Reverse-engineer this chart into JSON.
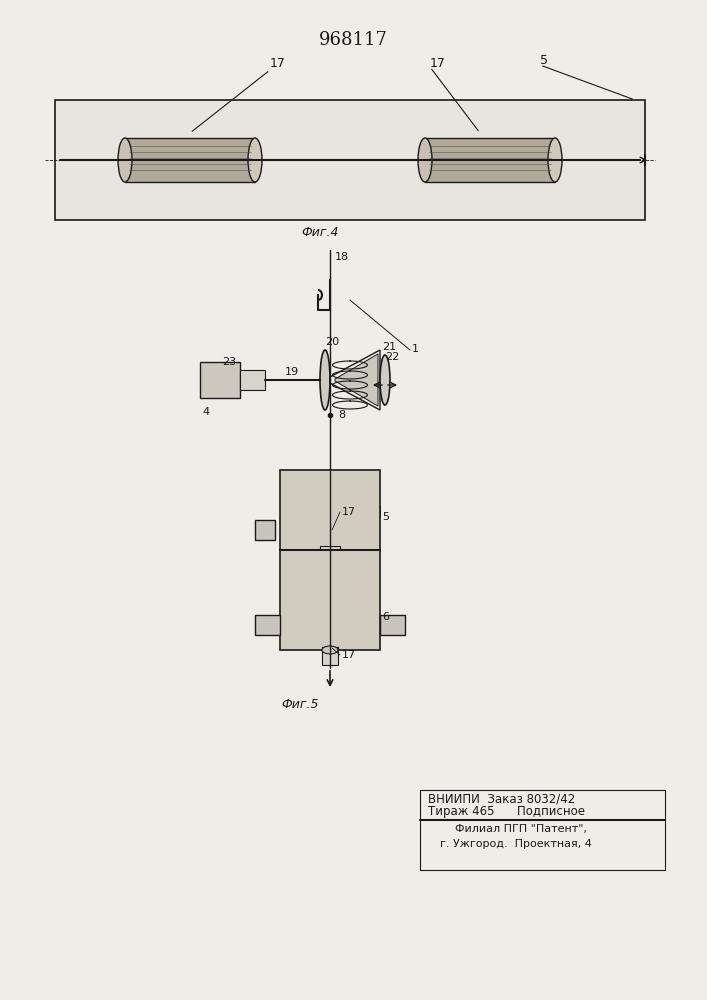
{
  "title": "968117",
  "fig4_label": "Фиг.4",
  "fig5_label": "Фиг.5",
  "footer_line1": "ВНИИПИ  Заказ 8032/42",
  "footer_line2": "Тираж 465      Подписное",
  "footer_line3": "Филиал ПГП \"Патент\",",
  "footer_line4": "г. Ужгород.  Проектная, 4",
  "bg_color": "#f0ede8",
  "line_color": "#1a1a1a"
}
